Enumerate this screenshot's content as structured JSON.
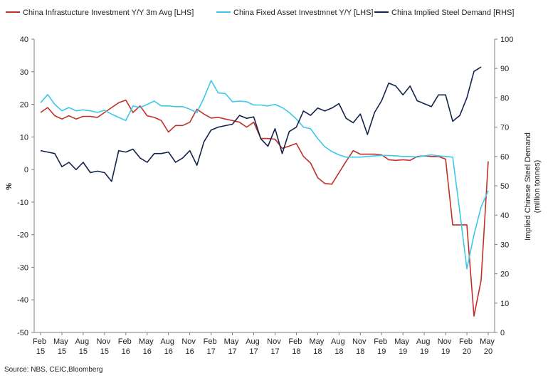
{
  "chart_data": {
    "type": "line",
    "ylabel": "%",
    "y2label": [
      "Implied Chinese Steel Demand",
      "(million tonnes)"
    ],
    "source": "Source: NBS, CEIC,Bloomberg",
    "categories": [
      "Feb 15",
      null,
      null,
      "May 15",
      null,
      null,
      "Aug 15",
      null,
      null,
      "Nov 15",
      null,
      null,
      "Feb 16",
      null,
      null,
      "May 16",
      null,
      null,
      "Aug 16",
      null,
      null,
      "Nov 16",
      null,
      null,
      "Feb 17",
      null,
      null,
      "May 17",
      null,
      null,
      "Aug 17",
      null,
      null,
      "Nov 17",
      null,
      null,
      "Feb 18",
      null,
      null,
      "May 18",
      null,
      null,
      "Aug 18",
      null,
      null,
      "Nov 18",
      null,
      null,
      "Feb 19",
      null,
      null,
      "May 19",
      null,
      null,
      "Aug 19",
      null,
      null,
      "Nov 19",
      null,
      null,
      "Feb 20",
      null,
      null,
      "May 20"
    ],
    "ylim": [
      -50,
      40
    ],
    "yticks": [
      -50,
      -40,
      -30,
      -20,
      -10,
      0,
      10,
      20,
      30,
      40
    ],
    "y2lim": [
      0,
      100
    ],
    "y2ticks": [
      0,
      10,
      20,
      30,
      40,
      50,
      60,
      70,
      80,
      90,
      100
    ],
    "grid": false,
    "legend": "top",
    "series": [
      {
        "name": "China Infrastucture Investment Y/Y 3m Avg [LHS]",
        "color": "#c0302a",
        "values": [
          17.5,
          19,
          16.5,
          15.5,
          16.5,
          15.5,
          16.3,
          16.3,
          16,
          17.5,
          19,
          20.5,
          21.3,
          17.5,
          19.5,
          16.5,
          16,
          15,
          11.5,
          13.5,
          13.5,
          14.5,
          18.5,
          17,
          15.8,
          16,
          15.5,
          15,
          14.5,
          13,
          14.5,
          9.5,
          9.5,
          9.3,
          6.5,
          7.2,
          8,
          4,
          2,
          -2.5,
          -4.3,
          -4.5,
          -1,
          2.5,
          5.8,
          4.7,
          4.7,
          4.7,
          4.5,
          3,
          2.8,
          3,
          2.8,
          4,
          4.2,
          4,
          4,
          3.2,
          -17,
          -17,
          -17,
          -45,
          -34,
          2.5
        ]
      },
      {
        "name": "China Fixed Asset Investmnet Y/Y [LHS]",
        "color": "#3cc8e8",
        "values": [
          20.5,
          23,
          20,
          18,
          19,
          18,
          18.3,
          18,
          17.5,
          18.2,
          17,
          16,
          15,
          19.5,
          19,
          20,
          21,
          19.5,
          19.5,
          19.3,
          19.3,
          18.5,
          17.5,
          22,
          27.3,
          23.5,
          23.3,
          20.8,
          21,
          20.8,
          19.8,
          19.8,
          19.5,
          20,
          19,
          17.5,
          15.5,
          13,
          12.5,
          9.5,
          7,
          5.5,
          4.5,
          3.8,
          3.8,
          3.8,
          4,
          4.2,
          4.3,
          4.3,
          4.2,
          4,
          4,
          3.8,
          4.2,
          4.5,
          4.2,
          4,
          3.8,
          -13,
          -30.5,
          -20,
          -11.5,
          -6.5
        ]
      },
      {
        "name": "China Implied Steel Demand [RHS]",
        "color": "#14234b",
        "axis": "y2",
        "values": [
          62,
          61.5,
          61,
          56.5,
          58,
          55.5,
          58,
          54.5,
          55,
          54.5,
          51.5,
          62,
          61.5,
          62.5,
          59.5,
          58,
          61,
          61,
          61.5,
          58,
          59.5,
          62,
          57,
          65,
          69,
          70,
          70.5,
          71,
          74,
          73,
          73.5,
          66,
          63.5,
          69.5,
          61,
          68.5,
          70,
          75.5,
          74,
          76.5,
          75.5,
          76.5,
          78,
          73,
          71.5,
          74.5,
          67.5,
          75,
          79,
          85,
          84,
          81,
          84,
          79,
          78,
          77,
          81,
          81,
          72,
          74,
          80,
          89,
          90.5,
          null
        ]
      }
    ]
  }
}
